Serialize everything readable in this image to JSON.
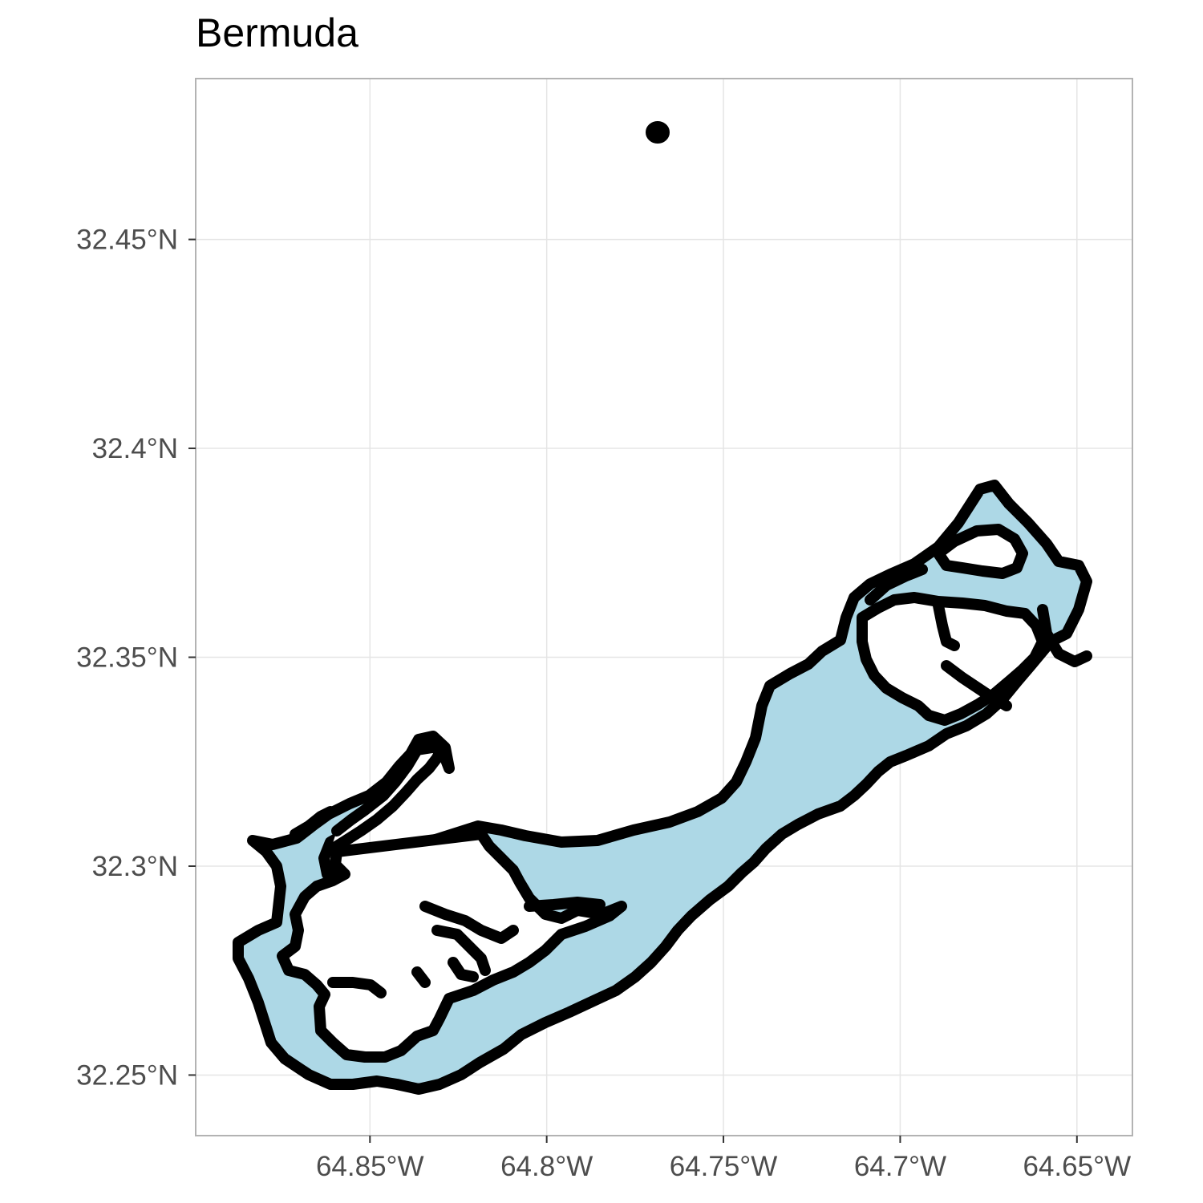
{
  "map": {
    "title": "Bermuda",
    "land_fill_color": "#add8e6",
    "outline_color": "#000000",
    "grid_color": "#e5e5e5",
    "panel_border_color": "#b3b3b3",
    "x_axis": {
      "range": [
        -64.8993,
        -64.6343
      ],
      "ticks": [
        {
          "value": -64.85,
          "label": "64.85°W"
        },
        {
          "value": -64.8,
          "label": "64.8°W"
        },
        {
          "value": -64.75,
          "label": "64.75°W"
        },
        {
          "value": -64.7,
          "label": "64.7°W"
        },
        {
          "value": -64.65,
          "label": "64.65°W"
        }
      ]
    },
    "y_axis": {
      "range": [
        32.2355,
        32.4885
      ],
      "ticks": [
        {
          "value": 32.45,
          "label": "32.45°N"
        },
        {
          "value": 32.4,
          "label": "32.4°N"
        },
        {
          "value": 32.35,
          "label": "32.35°N"
        },
        {
          "value": 32.3,
          "label": "32.3°N"
        },
        {
          "value": 32.25,
          "label": "32.25°N"
        }
      ]
    }
  }
}
